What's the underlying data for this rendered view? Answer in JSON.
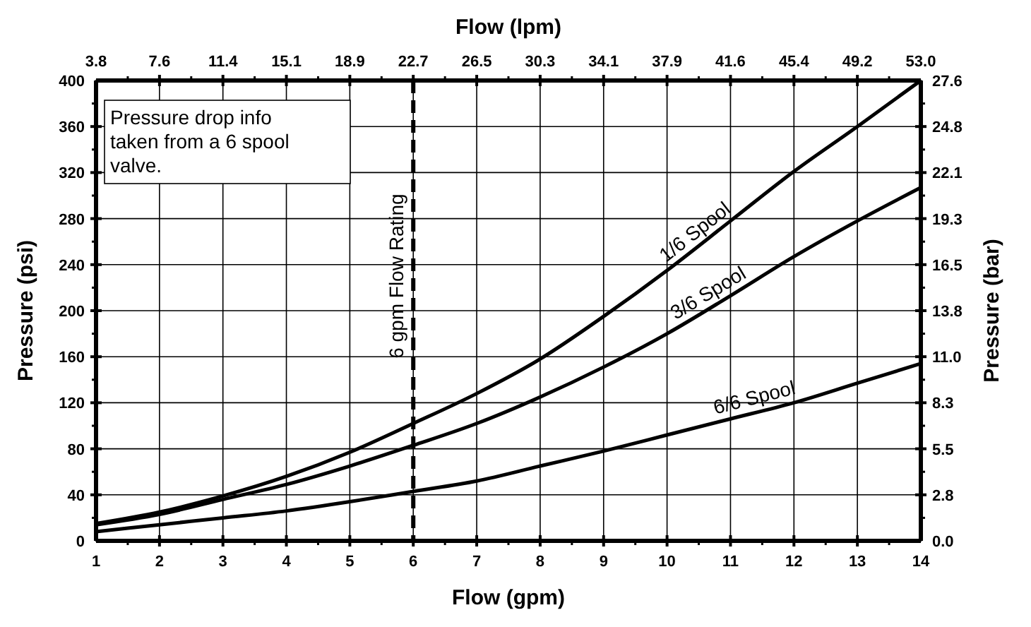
{
  "chart_data": {
    "type": "line",
    "xlabel": "Flow (gpm)",
    "x2label": "Flow (lpm)",
    "ylabel": "Pressure (psi)",
    "y2label": "Pressure (bar)",
    "x": [
      1,
      2,
      3,
      4,
      5,
      6,
      7,
      8,
      9,
      10,
      11,
      12,
      13,
      14
    ],
    "series": [
      {
        "name": "1/6 Spool",
        "color": "#000000",
        "values": [
          15,
          25,
          39,
          56,
          77,
          102,
          128,
          158,
          195,
          235,
          278,
          321,
          360,
          400
        ]
      },
      {
        "name": "3/6 Spool",
        "color": "#000000",
        "values": [
          14,
          23,
          36,
          49,
          65,
          83,
          102,
          125,
          151,
          180,
          213,
          247,
          278,
          307
        ]
      },
      {
        "name": "6/6 Spool",
        "color": "#000000",
        "values": [
          8,
          14,
          20,
          26,
          34,
          43,
          52,
          65,
          78,
          92,
          106,
          120,
          137,
          154
        ]
      }
    ],
    "xlim": [
      1,
      14
    ],
    "xticks": [
      1,
      2,
      3,
      4,
      5,
      6,
      7,
      8,
      9,
      10,
      11,
      12,
      13,
      14
    ],
    "x2lim": [
      3.785,
      52.996
    ],
    "x2ticks": [
      {
        "value": 3.785,
        "label": "3.8"
      },
      {
        "value": 7.571,
        "label": "7.6"
      },
      {
        "value": 11.356,
        "label": "11.4"
      },
      {
        "value": 15.142,
        "label": "15.1"
      },
      {
        "value": 18.927,
        "label": "18.9"
      },
      {
        "value": 22.712,
        "label": "22.7"
      },
      {
        "value": 26.498,
        "label": "26.5"
      },
      {
        "value": 30.283,
        "label": "30.3"
      },
      {
        "value": 34.069,
        "label": "34.1"
      },
      {
        "value": 37.854,
        "label": "37.9"
      },
      {
        "value": 41.64,
        "label": "41.6"
      },
      {
        "value": 45.425,
        "label": "45.4"
      },
      {
        "value": 49.21,
        "label": "49.2"
      },
      {
        "value": 52.996,
        "label": "53.0"
      }
    ],
    "ylim": [
      0,
      400
    ],
    "yticks": [
      0,
      40,
      80,
      120,
      160,
      200,
      240,
      280,
      320,
      360,
      400
    ],
    "y2lim": [
      0,
      27.579
    ],
    "y2ticks": [
      {
        "value": 0,
        "label": "0.0"
      },
      {
        "value": 2.758,
        "label": "2.8"
      },
      {
        "value": 5.516,
        "label": "5.5"
      },
      {
        "value": 8.274,
        "label": "8.3"
      },
      {
        "value": 11.032,
        "label": "11.0"
      },
      {
        "value": 13.79,
        "label": "13.8"
      },
      {
        "value": 16.547,
        "label": "16.5"
      },
      {
        "value": 19.305,
        "label": "19.3"
      },
      {
        "value": 22.063,
        "label": "22.1"
      },
      {
        "value": 24.821,
        "label": "24.8"
      },
      {
        "value": 27.579,
        "label": "27.6"
      }
    ],
    "ref_lines": [
      {
        "axis": "x",
        "value": 6,
        "label": "6 gpm Flow Rating",
        "color": "#000000",
        "line_style": "dashed"
      }
    ],
    "annotations": [
      "Pressure drop info taken from a 6 spool valve."
    ],
    "grid": true,
    "marker": "none",
    "line_style": "solid"
  }
}
